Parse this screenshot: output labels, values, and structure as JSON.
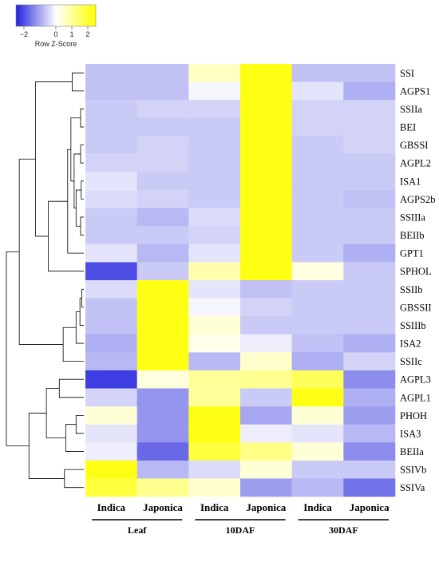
{
  "chart_data": {
    "type": "heatmap",
    "title": "",
    "color_key": {
      "label": "Row Z-Score",
      "ticks": [
        -2,
        0,
        1,
        2
      ],
      "tick_labels": [
        "−2",
        "0",
        "1",
        "2"
      ],
      "range": [
        -2.5,
        2.5
      ],
      "colors": {
        "low": "#2222dd",
        "mid": "#ffffff",
        "high": "#ffff00"
      }
    },
    "groups": [
      {
        "name": "Leaf",
        "columns": [
          "Indica",
          "Japonica"
        ]
      },
      {
        "name": "10DAF",
        "columns": [
          "Indica",
          "Japonica"
        ]
      },
      {
        "name": "30DAF",
        "columns": [
          "Indica",
          "Japonica"
        ]
      }
    ],
    "columns": [
      "Indica",
      "Japonica",
      "Indica",
      "Japonica",
      "Indica",
      "Japonica"
    ],
    "rows": [
      "SSI",
      "AGPS1",
      "SSIIa",
      "BEI",
      "GBSSI",
      "AGPL2",
      "ISA1",
      "AGPS2b",
      "SSIIIa",
      "BEIIb",
      "GPT1",
      "SPHOL",
      "SSIIb",
      "GBSSII",
      "SSIIIb",
      "ISA2",
      "SSIIc",
      "AGPL3",
      "AGPL1",
      "PHOH",
      "ISA3",
      "BEIIa",
      "SSIVb",
      "SSIVa"
    ],
    "values": [
      [
        -0.7,
        -0.7,
        0.6,
        2.3,
        -0.7,
        -0.7
      ],
      [
        -0.7,
        -0.7,
        -0.1,
        2.3,
        -0.3,
        -0.9
      ],
      [
        -0.6,
        -0.5,
        -0.5,
        2.3,
        -0.5,
        -0.5
      ],
      [
        -0.6,
        -0.6,
        -0.6,
        2.3,
        -0.5,
        -0.5
      ],
      [
        -0.6,
        -0.5,
        -0.6,
        2.3,
        -0.6,
        -0.5
      ],
      [
        -0.5,
        -0.5,
        -0.6,
        2.3,
        -0.6,
        -0.6
      ],
      [
        -0.3,
        -0.6,
        -0.6,
        2.3,
        -0.6,
        -0.6
      ],
      [
        -0.4,
        -0.5,
        -0.6,
        2.3,
        -0.6,
        -0.7
      ],
      [
        -0.6,
        -0.8,
        -0.4,
        2.3,
        -0.6,
        -0.6
      ],
      [
        -0.6,
        -0.6,
        -0.5,
        2.3,
        -0.6,
        -0.6
      ],
      [
        -0.3,
        -0.8,
        -0.3,
        2.3,
        -0.6,
        -0.9
      ],
      [
        -2.0,
        -0.6,
        0.8,
        2.3,
        0.3,
        -0.6
      ],
      [
        -0.4,
        2.3,
        -0.3,
        -0.7,
        -0.6,
        -0.6
      ],
      [
        -0.7,
        2.3,
        -0.1,
        -0.5,
        -0.6,
        -0.6
      ],
      [
        -0.7,
        2.3,
        0.4,
        -0.6,
        -0.6,
        -0.6
      ],
      [
        -0.9,
        2.3,
        0.2,
        -0.2,
        -0.7,
        -0.9
      ],
      [
        -0.8,
        2.3,
        -0.8,
        0.5,
        -0.9,
        -0.5
      ],
      [
        -2.2,
        0.3,
        1.0,
        1.1,
        1.6,
        -1.3
      ],
      [
        -0.5,
        -1.2,
        1.0,
        -0.6,
        2.3,
        -0.9
      ],
      [
        0.4,
        -1.2,
        2.3,
        -1.0,
        0.4,
        -1.1
      ],
      [
        -0.3,
        -1.2,
        2.3,
        -0.2,
        -0.3,
        -0.8
      ],
      [
        -0.2,
        -1.7,
        1.9,
        1.2,
        0.4,
        -1.3
      ],
      [
        2.3,
        -0.8,
        -0.4,
        0.4,
        -0.6,
        -0.6
      ],
      [
        1.9,
        1.1,
        0.5,
        -1.1,
        -0.8,
        -1.6
      ]
    ],
    "dendrogram": {
      "side": "left",
      "nodes": [
        [
          "SSI",
          "AGPS1",
          0.18
        ],
        [
          "SSIIa",
          "BEI",
          0.05
        ],
        [
          "GBSSI",
          "AGPL2",
          0.05
        ],
        [
          "ISA1",
          "AGPS2b",
          0.04
        ],
        [
          "SSIIIa",
          "BEIIb",
          0.05
        ],
        [
          "n5",
          "n4",
          0.12
        ],
        [
          "n3",
          "n6",
          0.15
        ],
        [
          "n2",
          "n7",
          0.2
        ],
        [
          "n8",
          "GPT1",
          0.25
        ],
        [
          "n9",
          "SPHOL",
          0.55
        ],
        [
          "n1",
          "n10",
          0.75
        ],
        [
          "SSIIb",
          "GBSSII",
          0.03
        ],
        [
          "n12",
          "SSIIIb",
          0.06
        ],
        [
          "n13",
          "ISA2",
          0.12
        ],
        [
          "n14",
          "SSIIc",
          0.32
        ],
        [
          "n11",
          "n15",
          1.0
        ],
        [
          "AGPL3",
          "AGPL1",
          0.38
        ],
        [
          "PHOH",
          "ISA3",
          0.12
        ],
        [
          "n18",
          "BEIIa",
          0.28
        ],
        [
          "n17",
          "n19",
          0.58
        ],
        [
          "SSIVb",
          "SSIVa",
          0.3
        ],
        [
          "n20",
          "n21",
          0.85
        ],
        [
          "n16",
          "n22",
          1.2
        ]
      ]
    }
  }
}
